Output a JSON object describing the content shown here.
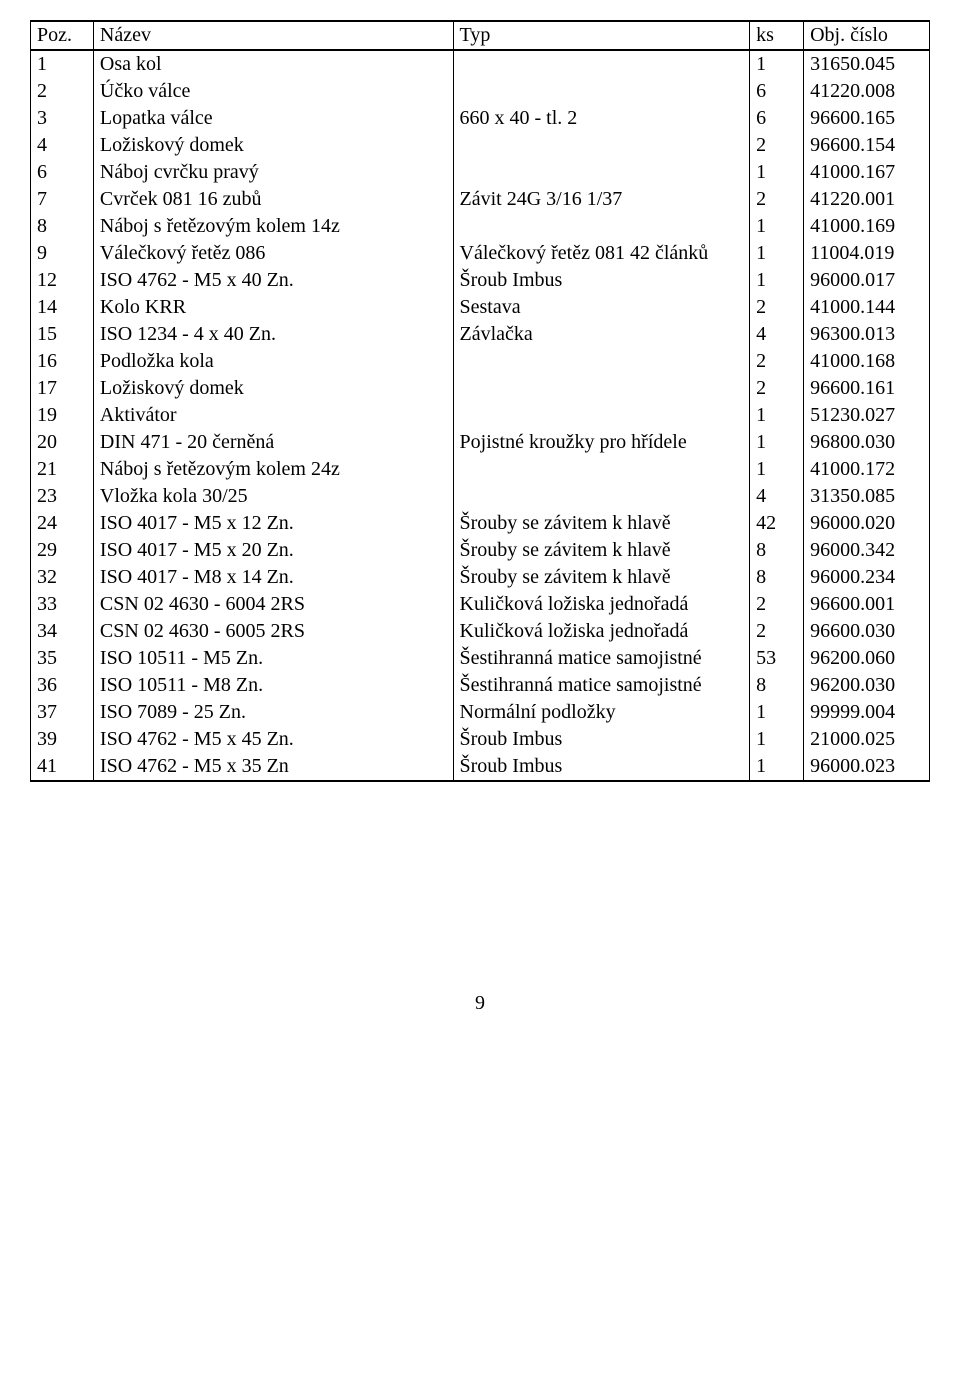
{
  "table": {
    "columns": [
      "Poz.",
      "Název",
      "Typ",
      "ks",
      "Obj. číslo"
    ],
    "rows": [
      [
        "1",
        "Osa kol",
        "",
        "1",
        "31650.045"
      ],
      [
        "2",
        "Účko válce",
        "",
        "6",
        "41220.008"
      ],
      [
        "3",
        "Lopatka válce",
        "660 x 40 - tl. 2",
        "6",
        "96600.165"
      ],
      [
        "4",
        "Ložiskový domek",
        "",
        "2",
        "96600.154"
      ],
      [
        "6",
        "Náboj cvrčku pravý",
        "",
        "1",
        "41000.167"
      ],
      [
        "7",
        "Cvrček 081 16 zubů",
        "Závit 24G 3/16 1/37",
        "2",
        "41220.001"
      ],
      [
        "8",
        "Náboj s řetězovým kolem 14z",
        "",
        "1",
        "41000.169"
      ],
      [
        "9",
        "Válečkový řetěz 086",
        "Válečkový řetěz 081 42 článků",
        "1",
        "11004.019"
      ],
      [
        "12",
        "ISO 4762 - M5 x 40 Zn.",
        "Šroub Imbus",
        "1",
        "96000.017"
      ],
      [
        "14",
        "Kolo KRR",
        "Sestava",
        "2",
        "41000.144"
      ],
      [
        "15",
        "ISO 1234 - 4 x 40 Zn.",
        "Závlačka",
        "4",
        "96300.013"
      ],
      [
        "16",
        "Podložka kola",
        "",
        "2",
        "41000.168"
      ],
      [
        "17",
        "Ložiskový domek",
        "",
        "2",
        "96600.161"
      ],
      [
        "19",
        "Aktivátor",
        "",
        "1",
        "51230.027"
      ],
      [
        "20",
        "DIN 471 - 20 černěná",
        "Pojistné kroužky pro hřídele",
        "1",
        "96800.030"
      ],
      [
        "21",
        "Náboj s řetězovým kolem 24z",
        "",
        "1",
        "41000.172"
      ],
      [
        "23",
        "Vložka kola 30/25",
        "",
        "4",
        "31350.085"
      ],
      [
        "24",
        "ISO 4017 - M5 x 12 Zn.",
        "Šrouby se závitem k hlavě",
        "42",
        "96000.020"
      ],
      [
        "29",
        "ISO 4017 - M5 x 20 Zn.",
        "Šrouby se závitem k hlavě",
        "8",
        "96000.342"
      ],
      [
        "32",
        "ISO 4017 - M8 x 14 Zn.",
        "Šrouby se závitem k hlavě",
        "8",
        "96000.234"
      ],
      [
        "33",
        "CSN 02 4630 - 6004 2RS",
        "Kuličková ložiska jednořadá",
        "2",
        "96600.001"
      ],
      [
        "34",
        "CSN 02 4630 - 6005 2RS",
        "Kuličková ložiska jednořadá",
        "2",
        "96600.030"
      ],
      [
        "35",
        "ISO 10511 - M5 Zn.",
        "Šestihranná matice samojistné",
        "53",
        "96200.060"
      ],
      [
        "36",
        "ISO 10511 - M8 Zn.",
        "Šestihranná matice samojistné",
        "8",
        "96200.030"
      ],
      [
        "37",
        "ISO 7089 - 25 Zn.",
        "Normální podložky",
        "1",
        "99999.004"
      ],
      [
        "39",
        "ISO 4762 - M5 x 45 Zn.",
        "Šroub Imbus",
        "1",
        "21000.025"
      ],
      [
        "41",
        "ISO 4762 - M5 x 35 Zn",
        "Šroub Imbus",
        "1",
        "96000.023"
      ]
    ]
  },
  "page_number": "9"
}
